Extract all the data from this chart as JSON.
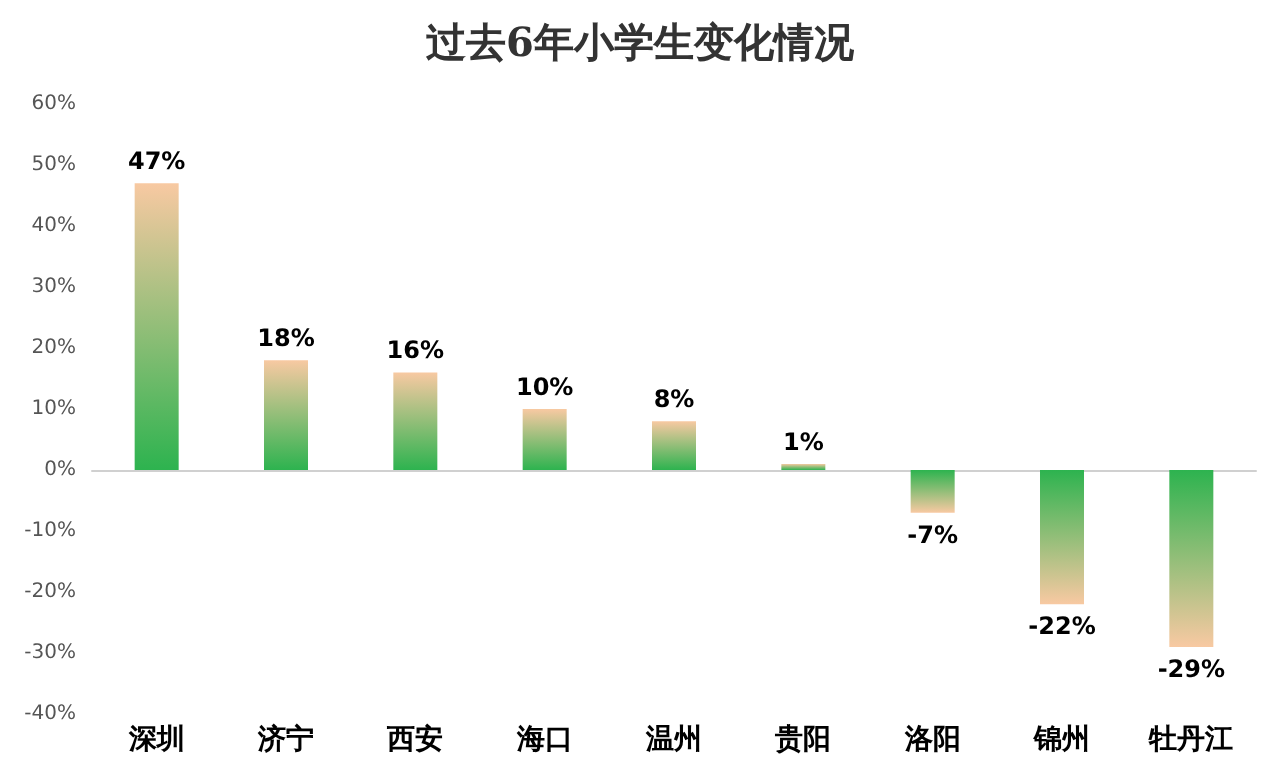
{
  "chart_data": {
    "type": "bar",
    "title": "过去6年小学生变化情况",
    "categories": [
      "深圳",
      "济宁",
      "西安",
      "海口",
      "温州",
      "贵阳",
      "洛阳",
      "锦州",
      "牡丹江"
    ],
    "values": [
      47,
      18,
      16,
      10,
      8,
      1,
      -7,
      -22,
      -29
    ],
    "value_labels": [
      "47%",
      "18%",
      "16%",
      "10%",
      "8%",
      "1%",
      "-7%",
      "-22%",
      "-29%"
    ],
    "color": "#2db34f",
    "ylim": [
      -40,
      60
    ],
    "yticks": [
      {
        "value": -40,
        "label": "-40%"
      },
      {
        "value": -30,
        "label": "-30%"
      },
      {
        "value": -20,
        "label": "-20%"
      },
      {
        "value": -10,
        "label": "-10%"
      },
      {
        "value": 0,
        "label": "0%"
      },
      {
        "value": 10,
        "label": "10%"
      },
      {
        "value": 20,
        "label": "20%"
      },
      {
        "value": 30,
        "label": "30%"
      },
      {
        "value": 40,
        "label": "40%"
      },
      {
        "value": 50,
        "label": "50%"
      },
      {
        "value": 60,
        "label": "60%"
      }
    ],
    "relative": false
  }
}
